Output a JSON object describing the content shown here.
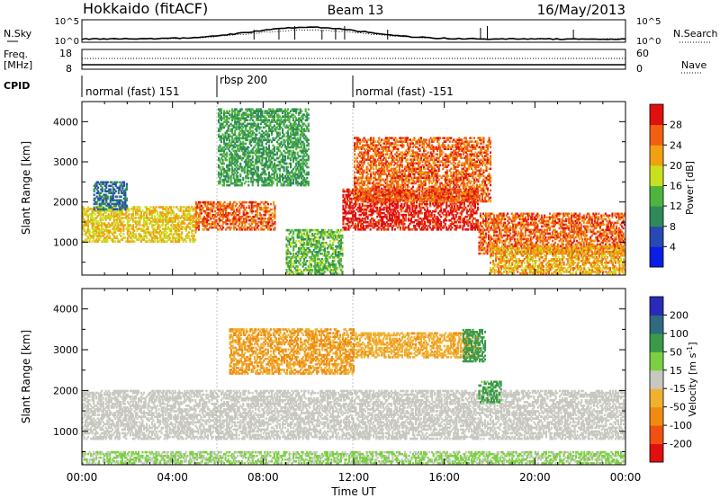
{
  "header": {
    "station": "Hokkaido (fitACF)",
    "beam": "Beam 13",
    "date": "16/May/2013"
  },
  "top_strip": {
    "left_label": "N.Sky",
    "right_label": "N.Search",
    "left_ticks": [
      "10^5",
      "10^0"
    ],
    "right_ticks": [
      "10^5",
      "10^0"
    ]
  },
  "freq_strip": {
    "left_label_1": "Freq.",
    "left_label_2": "[MHz]",
    "right_label": "Nave",
    "left_ticks": [
      "18",
      "8"
    ],
    "right_ticks": [
      "60",
      "0"
    ]
  },
  "cpid": {
    "label": "CPID",
    "segments": [
      {
        "label": "normal (fast) 151",
        "start_hour": 0,
        "end_hour": 6
      },
      {
        "label": "rbsp 200",
        "start_hour": 6,
        "end_hour": 12
      },
      {
        "label": "normal (fast) -151",
        "start_hour": 12,
        "end_hour": 24
      }
    ]
  },
  "xaxis": {
    "label": "Time UT",
    "ticks": [
      "00:00",
      "04:00",
      "08:00",
      "12:00",
      "16:00",
      "20:00",
      "00:00"
    ]
  },
  "power_panel": {
    "ylabel": "Slant Range [km]",
    "yticks": [
      "1000",
      "2000",
      "3000",
      "4000"
    ],
    "colorbar_label": "Power [dB]",
    "colorbar_ticks": [
      "4",
      "8",
      "12",
      "16",
      "20",
      "24",
      "28"
    ],
    "colors": [
      "#0a1ee6",
      "#2848b4",
      "#2e8a5a",
      "#4fb43c",
      "#c8e020",
      "#f0a010",
      "#f06010",
      "#e01010"
    ]
  },
  "velocity_panel": {
    "ylabel": "Slant Range [km]",
    "yticks": [
      "1000",
      "2000",
      "3000",
      "4000"
    ],
    "colorbar_label": "Velocity [m s",
    "colorbar_unit_exp": "-1",
    "colorbar_unit_close": "]",
    "colorbar_ticks": [
      "200",
      "100",
      "50",
      "15",
      "-15",
      "-50",
      "-100",
      "-200"
    ],
    "colors": [
      "#2a2ab8",
      "#2e6a80",
      "#3a9a4a",
      "#7ad040",
      "#c8c8c0",
      "#f0b030",
      "#f08a10",
      "#f05010",
      "#e01010"
    ]
  },
  "chart_data": [
    {
      "type": "heatmap",
      "title": "Power",
      "xlabel": "Time UT",
      "ylabel": "Slant Range [km]",
      "x_range_hours": [
        0,
        24
      ],
      "y_range_km": [
        180,
        4500
      ],
      "color_range": [
        0,
        32
      ],
      "color_label": "Power [dB]",
      "echo_bands": [
        {
          "start_hour": 0.0,
          "end_hour": 5.0,
          "range_km": [
            1000,
            1900
          ],
          "power_db": 20
        },
        {
          "start_hour": 0.5,
          "end_hour": 2.0,
          "range_km": [
            1800,
            2500
          ],
          "power_db": 8
        },
        {
          "start_hour": 5.0,
          "end_hour": 8.5,
          "range_km": [
            1300,
            2000
          ],
          "power_db": 26
        },
        {
          "start_hour": 6.0,
          "end_hour": 10.0,
          "range_km": [
            2400,
            4300
          ],
          "power_db": 12
        },
        {
          "start_hour": 9.0,
          "end_hour": 11.5,
          "range_km": [
            200,
            1300
          ],
          "power_db": 14
        },
        {
          "start_hour": 11.5,
          "end_hour": 17.5,
          "range_km": [
            1300,
            2300
          ],
          "power_db": 30
        },
        {
          "start_hour": 12.0,
          "end_hour": 18.0,
          "range_km": [
            2000,
            3600
          ],
          "power_db": 26
        },
        {
          "start_hour": 17.5,
          "end_hour": 24.0,
          "range_km": [
            700,
            1700
          ],
          "power_db": 26
        },
        {
          "start_hour": 18.0,
          "end_hour": 24.0,
          "range_km": [
            200,
            900
          ],
          "power_db": 22
        }
      ]
    },
    {
      "type": "heatmap",
      "title": "Velocity",
      "xlabel": "Time UT",
      "ylabel": "Slant Range [km]",
      "x_range_hours": [
        0,
        24
      ],
      "y_range_km": [
        180,
        4500
      ],
      "color_range": [
        -250,
        250
      ],
      "color_label": "Velocity [m s-1]",
      "echo_bands": [
        {
          "start_hour": 0.0,
          "end_hour": 24.0,
          "range_km": [
            800,
            2000
          ],
          "velocity_ms": 0
        },
        {
          "start_hour": 6.5,
          "end_hour": 12.0,
          "range_km": [
            2400,
            3500
          ],
          "velocity_ms": -50
        },
        {
          "start_hour": 12.0,
          "end_hour": 17.5,
          "range_km": [
            2800,
            3400
          ],
          "velocity_ms": -40
        },
        {
          "start_hour": 16.8,
          "end_hour": 17.8,
          "range_km": [
            2700,
            3500
          ],
          "velocity_ms": 70
        },
        {
          "start_hour": 17.5,
          "end_hour": 18.5,
          "range_km": [
            1700,
            2200
          ],
          "velocity_ms": 60
        },
        {
          "start_hour": 0.0,
          "end_hour": 24.0,
          "range_km": [
            200,
            500
          ],
          "velocity_ms": 20
        }
      ]
    }
  ]
}
